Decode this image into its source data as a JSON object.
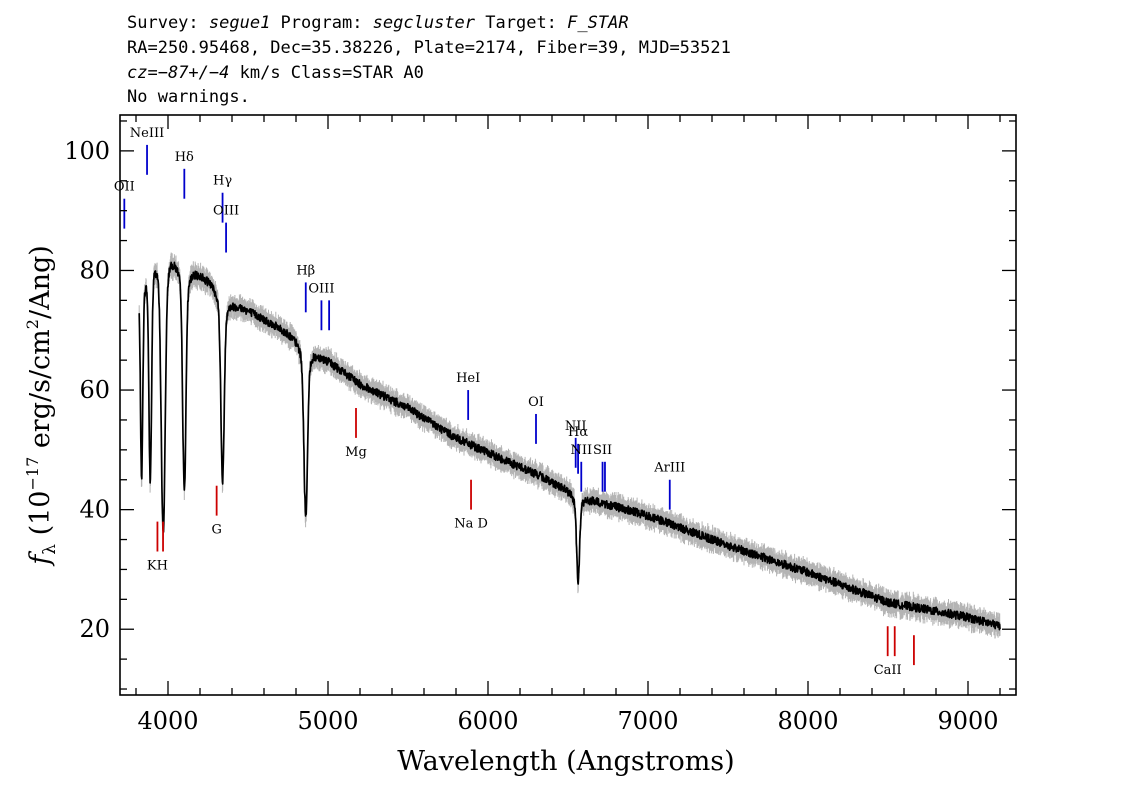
{
  "header": {
    "line1": {
      "survey_label": "Survey: ",
      "survey": "segue1",
      "program_label": " Program: ",
      "program": "segcluster",
      "target_label": " Target: ",
      "target": "F_STAR"
    },
    "line2": "RA=250.95468, Dec=35.38226, Plate=2174, Fiber=39, MJD=53521",
    "line3": {
      "cz_label": "cz",
      "cz_value": "=−87+/−4",
      "cz_unit": " km/s Class=STAR A0"
    },
    "line4": "No warnings."
  },
  "chart_data": {
    "type": "line",
    "xlabel": "Wavelength (Angstroms)",
    "ylabel_parts": [
      "f",
      "λ",
      " (10",
      "−17",
      " erg/s/cm",
      "2",
      "/Ang)"
    ],
    "xlim": [
      3700,
      9300
    ],
    "ylim": [
      9,
      106
    ],
    "x_ticks": [
      4000,
      5000,
      6000,
      7000,
      8000,
      9000
    ],
    "y_ticks": [
      20,
      40,
      60,
      80,
      100
    ],
    "x_minor_step": 200,
    "y_minor_step": 5,
    "grid": false,
    "colors": {
      "flux": "#000000",
      "error_band": "#b4b4b4",
      "emission_marker": "#0000cc",
      "absorption_marker": "#cc0000"
    },
    "continuum_points": [
      [
        3820,
        80
      ],
      [
        3900,
        85
      ],
      [
        4000,
        85
      ],
      [
        4100,
        82
      ],
      [
        4200,
        80
      ],
      [
        4300,
        78
      ],
      [
        4400,
        75
      ],
      [
        4600,
        72
      ],
      [
        4800,
        69
      ],
      [
        5000,
        65
      ],
      [
        5200,
        61
      ],
      [
        5500,
        57
      ],
      [
        5800,
        52
      ],
      [
        6000,
        49.5
      ],
      [
        6300,
        46
      ],
      [
        6600,
        42
      ],
      [
        7000,
        39
      ],
      [
        7500,
        34
      ],
      [
        8000,
        29.5
      ],
      [
        8500,
        24.5
      ],
      [
        9000,
        22
      ],
      [
        9200,
        20.5
      ]
    ],
    "absorption_features": [
      {
        "name": "H-epsilon",
        "center": 3970,
        "depth_to": 37,
        "width": 12
      },
      {
        "name": "H-delta",
        "center": 4102,
        "depth_to": 44,
        "width": 10
      },
      {
        "name": "H-gamma",
        "center": 4341,
        "depth_to": 45,
        "width": 10
      },
      {
        "name": "H-beta",
        "center": 4861,
        "depth_to": 39,
        "width": 11
      },
      {
        "name": "H-alpha",
        "center": 6563,
        "depth_to": 28,
        "width": 9
      },
      {
        "name": "H8",
        "center": 3889,
        "depth_to": 47,
        "width": 8
      },
      {
        "name": "H9",
        "center": 3835,
        "depth_to": 47,
        "width": 7
      }
    ],
    "error_halfwidth": 1.6,
    "emission_lines": [
      {
        "label": "OII",
        "x": 3727,
        "y_bottom": 87,
        "y_top": 92
      },
      {
        "label": "NeIII",
        "x": 3869,
        "y_bottom": 96,
        "y_top": 101
      },
      {
        "label": "Hδ",
        "x": 4102,
        "y_bottom": 92,
        "y_top": 97
      },
      {
        "label": "Hγ",
        "x": 4341,
        "y_bottom": 88,
        "y_top": 93
      },
      {
        "label": "OIII",
        "x": 4363,
        "y_bottom": 83,
        "y_top": 88
      },
      {
        "label": "Hβ",
        "x": 4861,
        "y_bottom": 73,
        "y_top": 78
      },
      {
        "label": "OIII",
        "x": 4959,
        "y_bottom": 70,
        "y_top": 75
      },
      {
        "label": "",
        "x": 5007,
        "y_bottom": 70,
        "y_top": 75
      },
      {
        "label": "HeI",
        "x": 5876,
        "y_bottom": 55,
        "y_top": 60
      },
      {
        "label": "OI",
        "x": 6300,
        "y_bottom": 51,
        "y_top": 56
      },
      {
        "label": "NII",
        "x": 6548,
        "y_bottom": 47,
        "y_top": 52
      },
      {
        "label": "Hα",
        "x": 6563,
        "y_bottom": 46,
        "y_top": 51
      },
      {
        "label": "NII",
        "x": 6583,
        "y_bottom": 43,
        "y_top": 48
      },
      {
        "label": "SII",
        "x": 6716,
        "y_bottom": 43,
        "y_top": 48
      },
      {
        "label": "",
        "x": 6731,
        "y_bottom": 43,
        "y_top": 48
      },
      {
        "label": "ArIII",
        "x": 7136,
        "y_bottom": 40,
        "y_top": 45
      }
    ],
    "absorption_lines": [
      {
        "label": "KH",
        "x": 3934,
        "y_bottom": 33,
        "y_top": 38
      },
      {
        "label": "",
        "x": 3969,
        "y_bottom": 33,
        "y_top": 38
      },
      {
        "label": "G",
        "x": 4304,
        "y_bottom": 39,
        "y_top": 44
      },
      {
        "label": "Mg",
        "x": 5175,
        "y_bottom": 52,
        "y_top": 57
      },
      {
        "label": "Na D",
        "x": 5894,
        "y_bottom": 40,
        "y_top": 45
      },
      {
        "label": "CaII",
        "x": 8498,
        "y_bottom": 15.5,
        "y_top": 20.5
      },
      {
        "label": "",
        "x": 8542,
        "y_bottom": 15.5,
        "y_top": 20.5
      },
      {
        "label": "",
        "x": 8662,
        "y_bottom": 14,
        "y_top": 19
      }
    ]
  }
}
